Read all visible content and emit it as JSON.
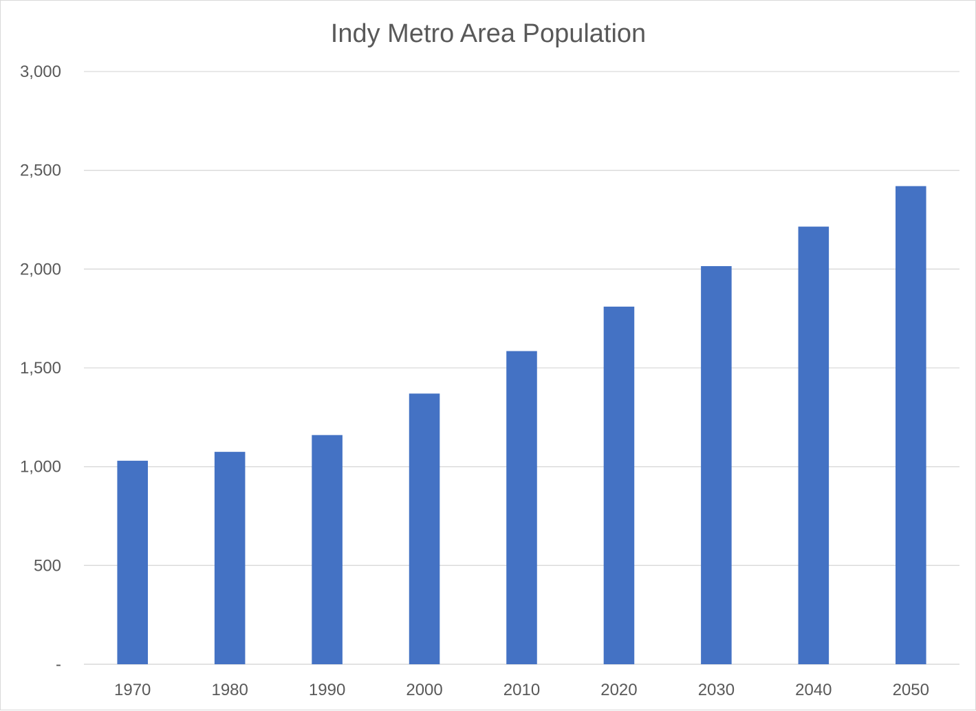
{
  "chart_data": {
    "type": "bar",
    "title": "Indy Metro Area Population",
    "xlabel": "",
    "ylabel": "",
    "categories": [
      "1970",
      "1980",
      "1990",
      "2000",
      "2010",
      "2020",
      "2030",
      "2040",
      "2050"
    ],
    "series": [
      {
        "values": [
          1030,
          1075,
          1160,
          1370,
          1585,
          1810,
          2015,
          2215,
          2420
        ]
      }
    ],
    "ylim": [
      0,
      3000
    ],
    "yticks": [
      0,
      500,
      1000,
      1500,
      2000,
      2500,
      3000
    ],
    "ytick_labels": [
      "-",
      "500",
      "1,000",
      "1,500",
      "2,000",
      "2,500",
      "3,000"
    ],
    "grid": true,
    "legend": "none",
    "colors": {
      "bar": "#4472c4",
      "grid": "#d9d9d9",
      "text": "#595959"
    }
  }
}
